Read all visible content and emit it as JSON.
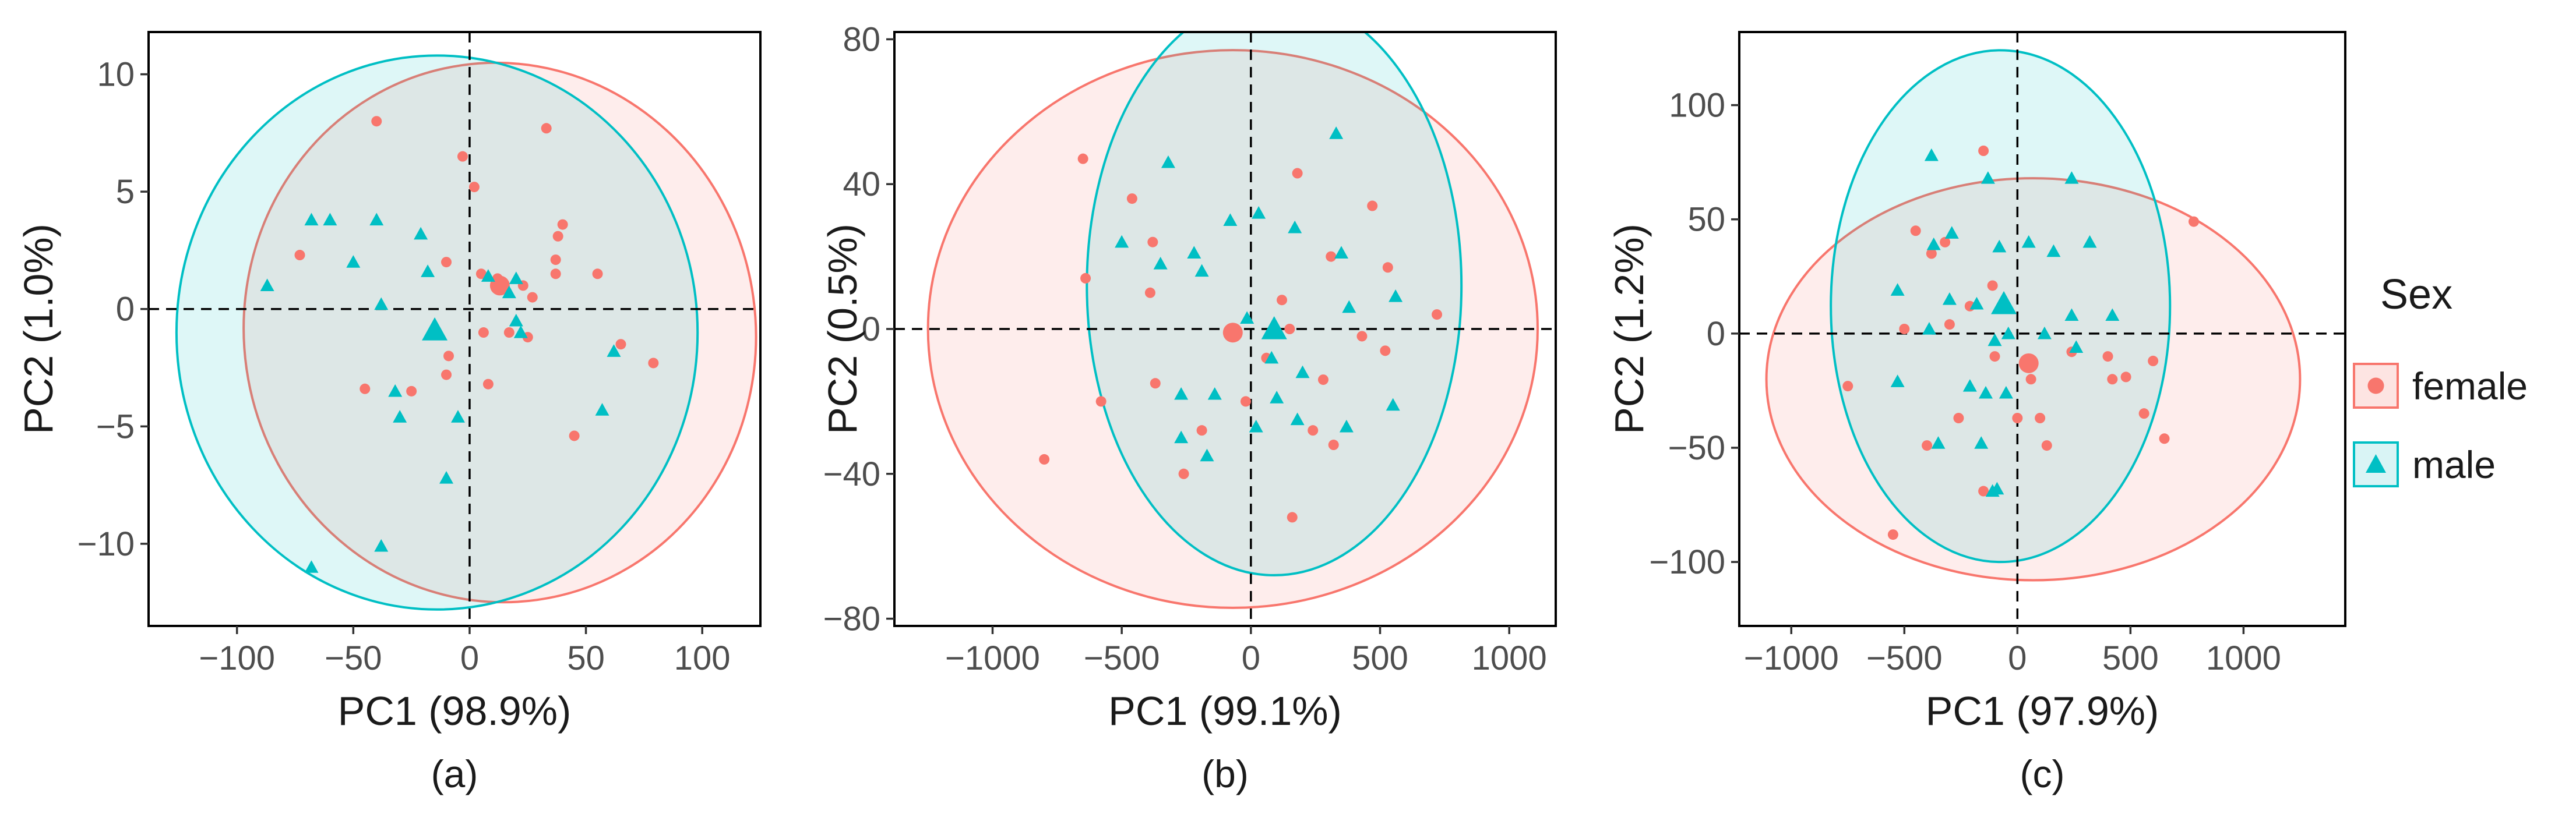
{
  "colors": {
    "female": "#F8766D",
    "male": "#00BFC4",
    "female_fill": "#FDE4E2",
    "male_fill": "#D9F4F5",
    "overlap_fill": "#DCE9E6",
    "axis": "#000000",
    "tick_text": "#4d4d4d"
  },
  "legend": {
    "title": "Sex",
    "entries": [
      {
        "label": "female",
        "group": "female",
        "marker": "circle"
      },
      {
        "label": "male",
        "group": "male",
        "marker": "triangle"
      }
    ]
  },
  "chart_data": [
    {
      "type": "scatter",
      "panel_label": "(a)",
      "xlabel": "PC1 (98.9%)",
      "ylabel": "PC2 (1.0%)",
      "xlim": [
        -138,
        125
      ],
      "ylim": [
        -13.5,
        11.8
      ],
      "xticks": [
        -100,
        -50,
        0,
        50,
        100
      ],
      "yticks": [
        -10,
        -5,
        0,
        5,
        10
      ],
      "xtick_labels": [
        "−100",
        "−50",
        "0",
        "50",
        "100"
      ],
      "ytick_labels": [
        "−10",
        "−5",
        "0",
        "5",
        "10"
      ],
      "series": [
        {
          "name": "female",
          "points": [
            [
              -40,
              8
            ],
            [
              -3,
              6.5
            ],
            [
              2,
              5.2
            ],
            [
              33,
              7.7
            ],
            [
              40,
              3.6
            ],
            [
              38,
              3.1
            ],
            [
              37,
              2.1
            ],
            [
              55,
              1.5
            ],
            [
              37,
              1.5
            ],
            [
              -73,
              2.3
            ],
            [
              -10,
              2
            ],
            [
              5,
              1.5
            ],
            [
              12,
              1.3
            ],
            [
              23,
              1
            ],
            [
              27,
              0.5
            ],
            [
              6,
              -1
            ],
            [
              17,
              -1
            ],
            [
              25,
              -1.2
            ],
            [
              -9,
              -2
            ],
            [
              65,
              -1.5
            ],
            [
              79,
              -2.3
            ],
            [
              -10,
              -2.8
            ],
            [
              8,
              -3.2
            ],
            [
              -45,
              -3.4
            ],
            [
              -25,
              -3.5
            ],
            [
              45,
              -5.4
            ]
          ],
          "centroid": [
            13,
            1
          ],
          "ellipse": {
            "cx": 13,
            "cy": -1,
            "rx": 110,
            "ry": 11.5,
            "rotation_deg": -8
          }
        },
        {
          "name": "male",
          "points": [
            [
              -68,
              3.8
            ],
            [
              -60,
              3.8
            ],
            [
              -40,
              3.8
            ],
            [
              -21,
              3.2
            ],
            [
              -50,
              2
            ],
            [
              -18,
              1.6
            ],
            [
              8,
              1.4
            ],
            [
              20,
              1.3
            ],
            [
              17,
              0.7
            ],
            [
              -87,
              1
            ],
            [
              -38,
              0.2
            ],
            [
              20,
              -0.5
            ],
            [
              22,
              -1
            ],
            [
              62,
              -1.8
            ],
            [
              -32,
              -3.5
            ],
            [
              -30,
              -4.6
            ],
            [
              -5,
              -4.6
            ],
            [
              57,
              -4.3
            ],
            [
              -10,
              -7.2
            ],
            [
              -38,
              -10.1
            ],
            [
              -68,
              -11
            ]
          ],
          "centroid": [
            -15,
            -0.9
          ],
          "ellipse": {
            "cx": -14,
            "cy": -1,
            "rx": 112,
            "ry": 11.8,
            "rotation_deg": 0
          }
        }
      ]
    },
    {
      "type": "scatter",
      "panel_label": "(b)",
      "xlabel": "PC1 (99.1%)",
      "ylabel": "PC2 (0.5%)",
      "xlim": [
        -1380,
        1180
      ],
      "ylim": [
        -82,
        82
      ],
      "xticks": [
        -1000,
        -500,
        0,
        500,
        1000
      ],
      "yticks": [
        -80,
        -40,
        0,
        40,
        80
      ],
      "xtick_labels": [
        "−1000",
        "−500",
        "0",
        "500",
        "1000"
      ],
      "ytick_labels": [
        "−80",
        "−40",
        "0",
        "40",
        "80"
      ],
      "series": [
        {
          "name": "female",
          "points": [
            [
              -650,
              47
            ],
            [
              -460,
              36
            ],
            [
              -380,
              24
            ],
            [
              -390,
              10
            ],
            [
              -640,
              14
            ],
            [
              -580,
              -20
            ],
            [
              -370,
              -15
            ],
            [
              -260,
              -40
            ],
            [
              -190,
              -28
            ],
            [
              -20,
              -20
            ],
            [
              60,
              -8
            ],
            [
              120,
              8
            ],
            [
              150,
              0
            ],
            [
              180,
              43
            ],
            [
              310,
              20
            ],
            [
              470,
              34
            ],
            [
              530,
              17
            ],
            [
              430,
              -2
            ],
            [
              520,
              -6
            ],
            [
              720,
              4
            ],
            [
              280,
              -14
            ],
            [
              240,
              -28
            ],
            [
              320,
              -32
            ],
            [
              160,
              -52
            ],
            [
              -800,
              -36
            ]
          ],
          "centroid": [
            -70,
            -1
          ],
          "ellipse": {
            "cx": -70,
            "cy": 0,
            "rx": 1180,
            "ry": 77,
            "rotation_deg": 0
          }
        },
        {
          "name": "male",
          "points": [
            [
              -320,
              46
            ],
            [
              330,
              54
            ],
            [
              -500,
              24
            ],
            [
              -220,
              21
            ],
            [
              -190,
              16
            ],
            [
              -80,
              30
            ],
            [
              170,
              28
            ],
            [
              30,
              32
            ],
            [
              350,
              21
            ],
            [
              380,
              6
            ],
            [
              560,
              9
            ],
            [
              -350,
              18
            ],
            [
              -270,
              -18
            ],
            [
              -140,
              -18
            ],
            [
              -270,
              -30
            ],
            [
              -170,
              -35
            ],
            [
              180,
              -25
            ],
            [
              370,
              -27
            ],
            [
              550,
              -21
            ],
            [
              200,
              -12
            ],
            [
              100,
              -19
            ],
            [
              20,
              -27
            ],
            [
              -15,
              3
            ],
            [
              80,
              -8
            ]
          ],
          "centroid": [
            90,
            0
          ],
          "ellipse": {
            "cx": 90,
            "cy": 12,
            "rx": 725,
            "ry": 80,
            "rotation_deg": 0
          }
        }
      ]
    },
    {
      "type": "scatter",
      "panel_label": "(c)",
      "xlabel": "PC1 (97.9%)",
      "ylabel": "PC2 (1.2%)",
      "xlim": [
        -1230,
        1450
      ],
      "ylim": [
        -128,
        132
      ],
      "xticks": [
        -1000,
        -500,
        0,
        500,
        1000
      ],
      "yticks": [
        -100,
        -50,
        0,
        50,
        100
      ],
      "xtick_labels": [
        "−1000",
        "−500",
        "0",
        "500",
        "1000"
      ],
      "ytick_labels": [
        "−100",
        "−50",
        "0",
        "50",
        "100"
      ],
      "series": [
        {
          "name": "female",
          "points": [
            [
              -150,
              80
            ],
            [
              -450,
              45
            ],
            [
              -320,
              40
            ],
            [
              -380,
              35
            ],
            [
              780,
              49
            ],
            [
              -110,
              21
            ],
            [
              -210,
              12
            ],
            [
              -300,
              4
            ],
            [
              -500,
              2
            ],
            [
              -750,
              -23
            ],
            [
              -400,
              -49
            ],
            [
              -260,
              -37
            ],
            [
              0,
              -37
            ],
            [
              100,
              -37
            ],
            [
              130,
              -49
            ],
            [
              400,
              -10
            ],
            [
              420,
              -20
            ],
            [
              480,
              -19
            ],
            [
              600,
              -12
            ],
            [
              560,
              -35
            ],
            [
              650,
              -46
            ],
            [
              240,
              -8
            ],
            [
              -150,
              -69
            ],
            [
              -550,
              -88
            ],
            [
              60,
              -20
            ],
            [
              -100,
              -10
            ]
          ],
          "centroid": [
            50,
            -13
          ],
          "ellipse": {
            "cx": 70,
            "cy": -20,
            "rx": 1180,
            "ry": 88,
            "rotation_deg": 0
          }
        },
        {
          "name": "male",
          "points": [
            [
              -380,
              78
            ],
            [
              -130,
              68
            ],
            [
              240,
              68
            ],
            [
              -370,
              39
            ],
            [
              -290,
              44
            ],
            [
              -80,
              38
            ],
            [
              50,
              40
            ],
            [
              160,
              36
            ],
            [
              320,
              40
            ],
            [
              -530,
              19
            ],
            [
              -300,
              15
            ],
            [
              -180,
              13
            ],
            [
              -390,
              2
            ],
            [
              -100,
              -3
            ],
            [
              120,
              0
            ],
            [
              240,
              8
            ],
            [
              420,
              8
            ],
            [
              -530,
              -21
            ],
            [
              -350,
              -48
            ],
            [
              -210,
              -23
            ],
            [
              -140,
              -26
            ],
            [
              -50,
              -26
            ],
            [
              260,
              -6
            ],
            [
              -160,
              -48
            ],
            [
              -90,
              -68
            ],
            [
              -110,
              -69
            ],
            [
              -40,
              0
            ]
          ],
          "centroid": [
            -60,
            13
          ],
          "ellipse": {
            "cx": -75,
            "cy": 12,
            "rx": 750,
            "ry": 112,
            "rotation_deg": 0
          }
        }
      ]
    }
  ]
}
